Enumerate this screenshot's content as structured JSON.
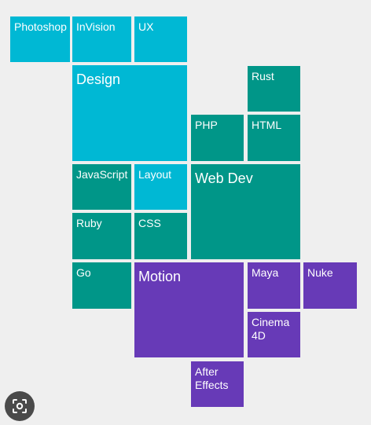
{
  "colors": {
    "design": "#00b8d4",
    "dev": "#009688",
    "motion": "#673ab7",
    "background": "#efefef"
  },
  "tiles": [
    {
      "label": "Photoshop",
      "group": "design"
    },
    {
      "label": "InVision",
      "group": "design"
    },
    {
      "label": "UX",
      "group": "design"
    },
    {
      "label": "Design",
      "group": "design"
    },
    {
      "label": "Rust",
      "group": "dev"
    },
    {
      "label": "PHP",
      "group": "dev"
    },
    {
      "label": "HTML",
      "group": "dev"
    },
    {
      "label": "JavaScript",
      "group": "dev"
    },
    {
      "label": "Layout",
      "group": "design"
    },
    {
      "label": "Web Dev",
      "group": "dev"
    },
    {
      "label": "Ruby",
      "group": "dev"
    },
    {
      "label": "CSS",
      "group": "dev"
    },
    {
      "label": "Go",
      "group": "dev"
    },
    {
      "label": "Motion",
      "group": "motion"
    },
    {
      "label": "Maya",
      "group": "motion"
    },
    {
      "label": "Nuke",
      "group": "motion"
    },
    {
      "label": "Cinema\n4D",
      "group": "motion"
    },
    {
      "label": "After\nEffects",
      "group": "motion"
    }
  ],
  "lens_icon": "lens-scan-icon"
}
